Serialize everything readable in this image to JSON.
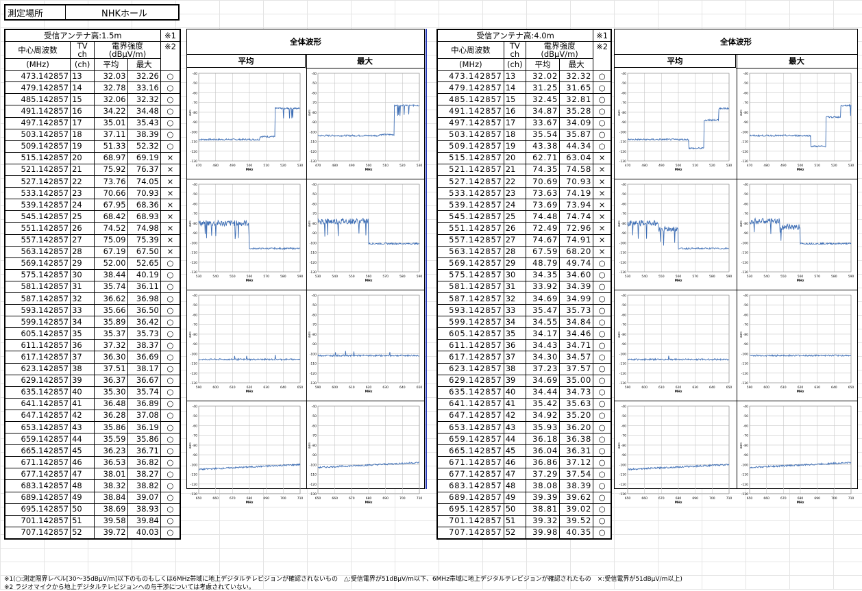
{
  "place": {
    "label": "測定場所",
    "value": "NHKホール"
  },
  "left_table": {
    "antenna": "受信アンテナ高:1.5m",
    "h_freq": "中心周波数",
    "h_tv1": "TV",
    "h_tv2": "ch",
    "h_field1": "電界強度",
    "h_field2": "(dBμV/m)",
    "h_note1": "※1",
    "h_note2": "※2",
    "u_freq": "(MHz)",
    "u_ch": "(ch)",
    "u_avg": "平均",
    "u_max": "最大",
    "rows": [
      [
        "473.142857",
        "13",
        "32.03",
        "32.26",
        "○"
      ],
      [
        "479.142857",
        "14",
        "32.78",
        "33.16",
        "○"
      ],
      [
        "485.142857",
        "15",
        "32.06",
        "32.32",
        "○"
      ],
      [
        "491.142857",
        "16",
        "34.22",
        "34.48",
        "○"
      ],
      [
        "497.142857",
        "17",
        "35.01",
        "35.43",
        "○"
      ],
      [
        "503.142857",
        "18",
        "37.11",
        "38.39",
        "○"
      ],
      [
        "509.142857",
        "19",
        "51.33",
        "52.32",
        "○"
      ],
      [
        "515.142857",
        "20",
        "68.97",
        "69.19",
        "×"
      ],
      [
        "521.142857",
        "21",
        "75.92",
        "76.37",
        "×"
      ],
      [
        "527.142857",
        "22",
        "73.76",
        "74.05",
        "×"
      ],
      [
        "533.142857",
        "23",
        "70.66",
        "70.93",
        "×"
      ],
      [
        "539.142857",
        "24",
        "67.95",
        "68.36",
        "×"
      ],
      [
        "545.142857",
        "25",
        "68.42",
        "68.93",
        "×"
      ],
      [
        "551.142857",
        "26",
        "74.52",
        "74.98",
        "×"
      ],
      [
        "557.142857",
        "27",
        "75.09",
        "75.39",
        "×"
      ],
      [
        "563.142857",
        "28",
        "67.19",
        "67.50",
        "×"
      ],
      [
        "569.142857",
        "29",
        "52.00",
        "52.65",
        "○"
      ],
      [
        "575.142857",
        "30",
        "38.44",
        "40.19",
        "○"
      ],
      [
        "581.142857",
        "31",
        "35.74",
        "36.11",
        "○"
      ],
      [
        "587.142857",
        "32",
        "36.62",
        "36.98",
        "○"
      ],
      [
        "593.142857",
        "33",
        "35.66",
        "36.50",
        "○"
      ],
      [
        "599.142857",
        "34",
        "35.89",
        "36.42",
        "○"
      ],
      [
        "605.142857",
        "35",
        "35.37",
        "35.73",
        "○"
      ],
      [
        "611.142857",
        "36",
        "37.32",
        "38.37",
        "○"
      ],
      [
        "617.142857",
        "37",
        "36.30",
        "36.69",
        "○"
      ],
      [
        "623.142857",
        "38",
        "37.51",
        "38.17",
        "○"
      ],
      [
        "629.142857",
        "39",
        "36.37",
        "36.67",
        "○"
      ],
      [
        "635.142857",
        "40",
        "35.30",
        "35.74",
        "○"
      ],
      [
        "641.142857",
        "41",
        "36.48",
        "36.89",
        "○"
      ],
      [
        "647.142857",
        "42",
        "36.28",
        "37.08",
        "○"
      ],
      [
        "653.142857",
        "43",
        "35.86",
        "36.19",
        "○"
      ],
      [
        "659.142857",
        "44",
        "35.59",
        "35.86",
        "○"
      ],
      [
        "665.142857",
        "45",
        "36.23",
        "36.71",
        "○"
      ],
      [
        "671.142857",
        "46",
        "36.53",
        "36.82",
        "○"
      ],
      [
        "677.142857",
        "47",
        "38.01",
        "38.27",
        "○"
      ],
      [
        "683.142857",
        "48",
        "38.32",
        "38.82",
        "○"
      ],
      [
        "689.142857",
        "49",
        "38.84",
        "39.07",
        "○"
      ],
      [
        "695.142857",
        "50",
        "38.69",
        "38.93",
        "○"
      ],
      [
        "701.142857",
        "51",
        "39.58",
        "39.84",
        "○"
      ],
      [
        "707.142857",
        "52",
        "39.72",
        "40.03",
        "○"
      ]
    ]
  },
  "right_table": {
    "antenna": "受信アンテナ高:4.0m",
    "h_freq": "中心周波数",
    "h_tv1": "TV",
    "h_tv2": "ch",
    "h_field1": "電界強度",
    "h_field2": "(dBμV/m)",
    "h_note1": "※1",
    "h_note2": "※2",
    "u_freq": "(MHz)",
    "u_ch": "(ch)",
    "u_avg": "平均",
    "u_max": "最大",
    "rows": [
      [
        "473.142857",
        "13",
        "32.02",
        "32.32",
        "○"
      ],
      [
        "479.142857",
        "14",
        "31.25",
        "31.65",
        "○"
      ],
      [
        "485.142857",
        "15",
        "32.45",
        "32.81",
        "○"
      ],
      [
        "491.142857",
        "16",
        "34.87",
        "35.28",
        "○"
      ],
      [
        "497.142857",
        "17",
        "33.67",
        "34.09",
        "○"
      ],
      [
        "503.142857",
        "18",
        "35.54",
        "35.87",
        "○"
      ],
      [
        "509.142857",
        "19",
        "43.38",
        "44.34",
        "○"
      ],
      [
        "515.142857",
        "20",
        "62.71",
        "63.04",
        "×"
      ],
      [
        "521.142857",
        "21",
        "74.35",
        "74.58",
        "×"
      ],
      [
        "527.142857",
        "22",
        "70.69",
        "70.93",
        "×"
      ],
      [
        "533.142857",
        "23",
        "73.63",
        "74.19",
        "×"
      ],
      [
        "539.142857",
        "24",
        "73.69",
        "73.94",
        "×"
      ],
      [
        "545.142857",
        "25",
        "74.48",
        "74.74",
        "×"
      ],
      [
        "551.142857",
        "26",
        "72.49",
        "72.96",
        "×"
      ],
      [
        "557.142857",
        "27",
        "74.67",
        "74.91",
        "×"
      ],
      [
        "563.142857",
        "28",
        "67.59",
        "68.20",
        "×"
      ],
      [
        "569.142857",
        "29",
        "48.79",
        "49.74",
        "○"
      ],
      [
        "575.142857",
        "30",
        "34.35",
        "34.60",
        "○"
      ],
      [
        "581.142857",
        "31",
        "33.92",
        "34.39",
        "○"
      ],
      [
        "587.142857",
        "32",
        "34.69",
        "34.99",
        "○"
      ],
      [
        "593.142857",
        "33",
        "35.47",
        "35.73",
        "○"
      ],
      [
        "599.142857",
        "34",
        "34.55",
        "34.84",
        "○"
      ],
      [
        "605.142857",
        "35",
        "34.17",
        "34.46",
        "○"
      ],
      [
        "611.142857",
        "36",
        "34.43",
        "34.71",
        "○"
      ],
      [
        "617.142857",
        "37",
        "34.30",
        "34.57",
        "○"
      ],
      [
        "623.142857",
        "38",
        "37.23",
        "37.57",
        "○"
      ],
      [
        "629.142857",
        "39",
        "34.69",
        "35.00",
        "○"
      ],
      [
        "635.142857",
        "40",
        "34.44",
        "34.73",
        "○"
      ],
      [
        "641.142857",
        "41",
        "35.42",
        "35.63",
        "○"
      ],
      [
        "647.142857",
        "42",
        "34.92",
        "35.20",
        "○"
      ],
      [
        "653.142857",
        "43",
        "35.93",
        "36.20",
        "○"
      ],
      [
        "659.142857",
        "44",
        "36.18",
        "36.38",
        "○"
      ],
      [
        "665.142857",
        "45",
        "36.04",
        "36.31",
        "○"
      ],
      [
        "671.142857",
        "46",
        "36.86",
        "37.12",
        "○"
      ],
      [
        "677.142857",
        "47",
        "37.29",
        "37.54",
        "○"
      ],
      [
        "683.142857",
        "48",
        "38.08",
        "38.39",
        "○"
      ],
      [
        "689.142857",
        "49",
        "39.39",
        "39.62",
        "○"
      ],
      [
        "695.142857",
        "50",
        "38.81",
        "39.02",
        "○"
      ],
      [
        "701.142857",
        "51",
        "39.32",
        "39.52",
        "○"
      ],
      [
        "707.142857",
        "52",
        "39.98",
        "40.35",
        "○"
      ]
    ]
  },
  "waveform": {
    "title": "全体波形",
    "avg": "平均",
    "max": "最大",
    "xunit": "MHz",
    "yunit": "dBm"
  },
  "chart_data": {
    "type": "line",
    "ylim": [
      -130,
      -40
    ],
    "yticks": [
      "-40",
      "-50",
      "-60",
      "-70",
      "-80",
      "-90",
      "-100",
      "-110",
      "-120",
      "-130"
    ],
    "bands": [
      {
        "xticks": [
          "470",
          "480",
          "490",
          "500",
          "510",
          "520",
          "530"
        ],
        "xlim": [
          470,
          530
        ]
      },
      {
        "xticks": [
          "530",
          "540",
          "550",
          "560",
          "570",
          "580",
          "590"
        ],
        "xlim": [
          530,
          590
        ]
      },
      {
        "xticks": [
          "590",
          "600",
          "610",
          "620",
          "630",
          "640",
          "650"
        ],
        "xlim": [
          590,
          650
        ]
      },
      {
        "xticks": [
          "650",
          "660",
          "670",
          "680",
          "690",
          "700",
          "710"
        ],
        "xlim": [
          650,
          710
        ]
      }
    ]
  },
  "notes": {
    "line1": "※1(○:測定限界レベル[30～35dBμV/m]以下のものもしくは6MHz帯域に地上デジタルテレビジョンが確認されないもの　△:受信電界が51dBμV/m以下、6MHz帯域に地上デジタルテレビジョンが確認されたもの　×:受信電界が51dBμV/m以上)",
    "line2": "※2 ラジオマイクから地上デジタルテレビジョンへの与干渉については考慮されていない。"
  }
}
